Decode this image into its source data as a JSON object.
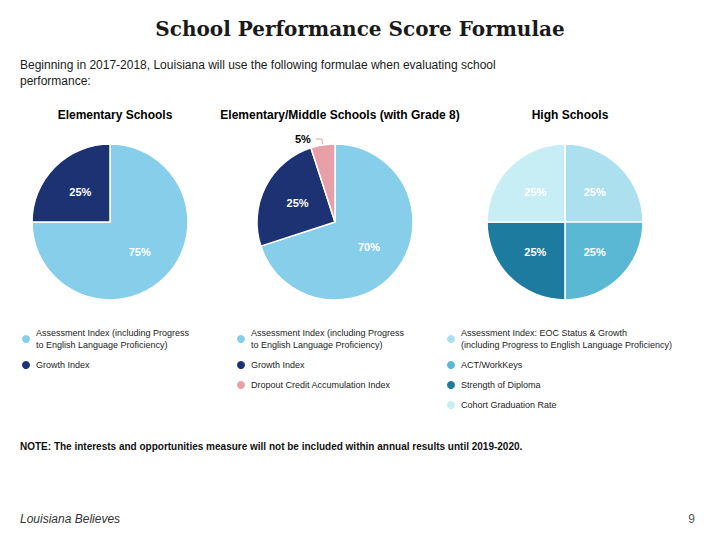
{
  "title": "School Performance Score Formulae",
  "subtitle": "Beginning in 2017-2018, Louisiana will use the following formulae when evaluating school\nperformance:",
  "annotations": [
    "NOTE: The interests and opportunities measure will not be included within annual results until 2019-2020.",
    "Louisiana Believes",
    "9"
  ],
  "chart_data": [
    {
      "type": "pie",
      "title": "Elementary Schools",
      "categories": [
        "Assessment Index (including Progress\nto English Language Proficiency)",
        "Growth Index"
      ],
      "values": [
        75,
        25
      ],
      "value_labels": [
        "75%",
        "25%"
      ],
      "colors": [
        "#87CEEB",
        "#1C3272"
      ],
      "data_labels": true
    },
    {
      "type": "pie",
      "title": "Elementary/Middle Schools (with Grade 8)",
      "categories": [
        "Assessment Index (including Progress\nto English Language Proficiency)",
        "Growth Index",
        "Dropout Credit Accumulation Index"
      ],
      "values": [
        70,
        25,
        5
      ],
      "value_labels": [
        "70%",
        "25%",
        "5%"
      ],
      "colors": [
        "#87CEEB",
        "#1C3272",
        "#E8A0A8"
      ],
      "data_labels": true
    },
    {
      "type": "pie",
      "title": "High Schools",
      "categories": [
        "Assessment Index: EOC Status & Growth\n(including Progress to English Language Proficiency)",
        "ACT/WorkKeys",
        "Strength of Diploma",
        "Cohort Graduation Rate"
      ],
      "values": [
        25,
        25,
        25,
        25
      ],
      "value_labels": [
        "25%",
        "25%",
        "25%",
        "25%"
      ],
      "colors": [
        "#ADE0EE",
        "#5BB8D4",
        "#1E7BA0",
        "#C8EEF5"
      ],
      "data_labels": true
    }
  ]
}
